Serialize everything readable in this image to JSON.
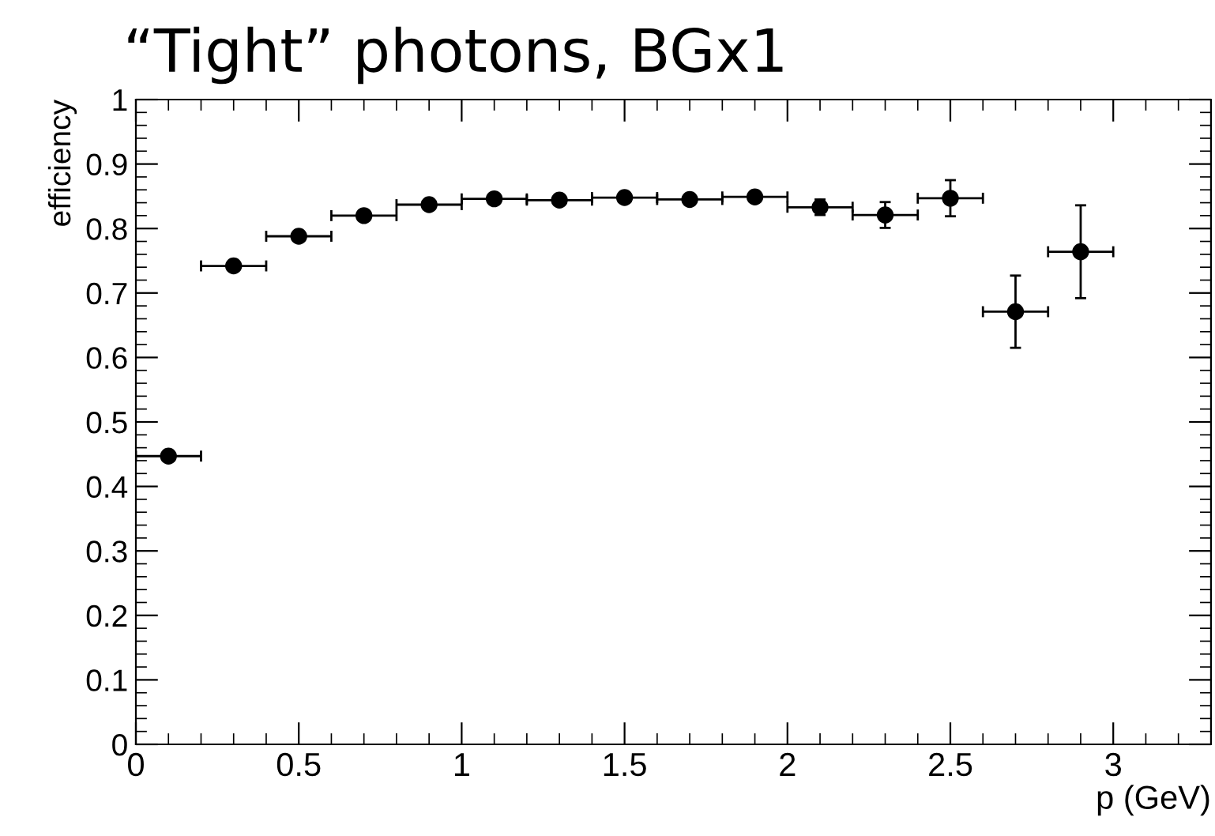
{
  "chart_data": {
    "type": "scatter",
    "title": "“Tight” photons, BGx1",
    "xlabel": "p (GeV)",
    "ylabel": "efficiency",
    "x": [
      0.1,
      0.3,
      0.5,
      0.7,
      0.9,
      1.1,
      1.3,
      1.5,
      1.7,
      1.9,
      2.1,
      2.3,
      2.5,
      2.7,
      2.9
    ],
    "values": [
      0.447,
      0.742,
      0.788,
      0.82,
      0.837,
      0.846,
      0.844,
      0.848,
      0.845,
      0.849,
      0.833,
      0.821,
      0.847,
      0.671,
      0.764
    ],
    "errors": [
      null,
      null,
      null,
      null,
      null,
      null,
      null,
      null,
      null,
      null,
      0.012,
      0.02,
      0.028,
      0.056,
      0.072
    ],
    "xerrors": [
      0.1,
      0.1,
      0.1,
      0.1,
      0.1,
      0.1,
      0.1,
      0.1,
      0.1,
      0.1,
      0.1,
      0.1,
      0.1,
      0.1,
      0.1
    ],
    "color": "#000000",
    "marker": "circle",
    "xlim": [
      0,
      3.3
    ],
    "xticks": [
      0,
      0.5,
      1,
      1.5,
      2,
      2.5,
      3
    ],
    "ylim": [
      0,
      1
    ],
    "yticks": [
      0,
      0.1,
      0.2,
      0.3,
      0.4,
      0.5,
      0.6,
      0.7,
      0.8,
      0.9,
      1
    ],
    "grid": false,
    "legend": false
  }
}
